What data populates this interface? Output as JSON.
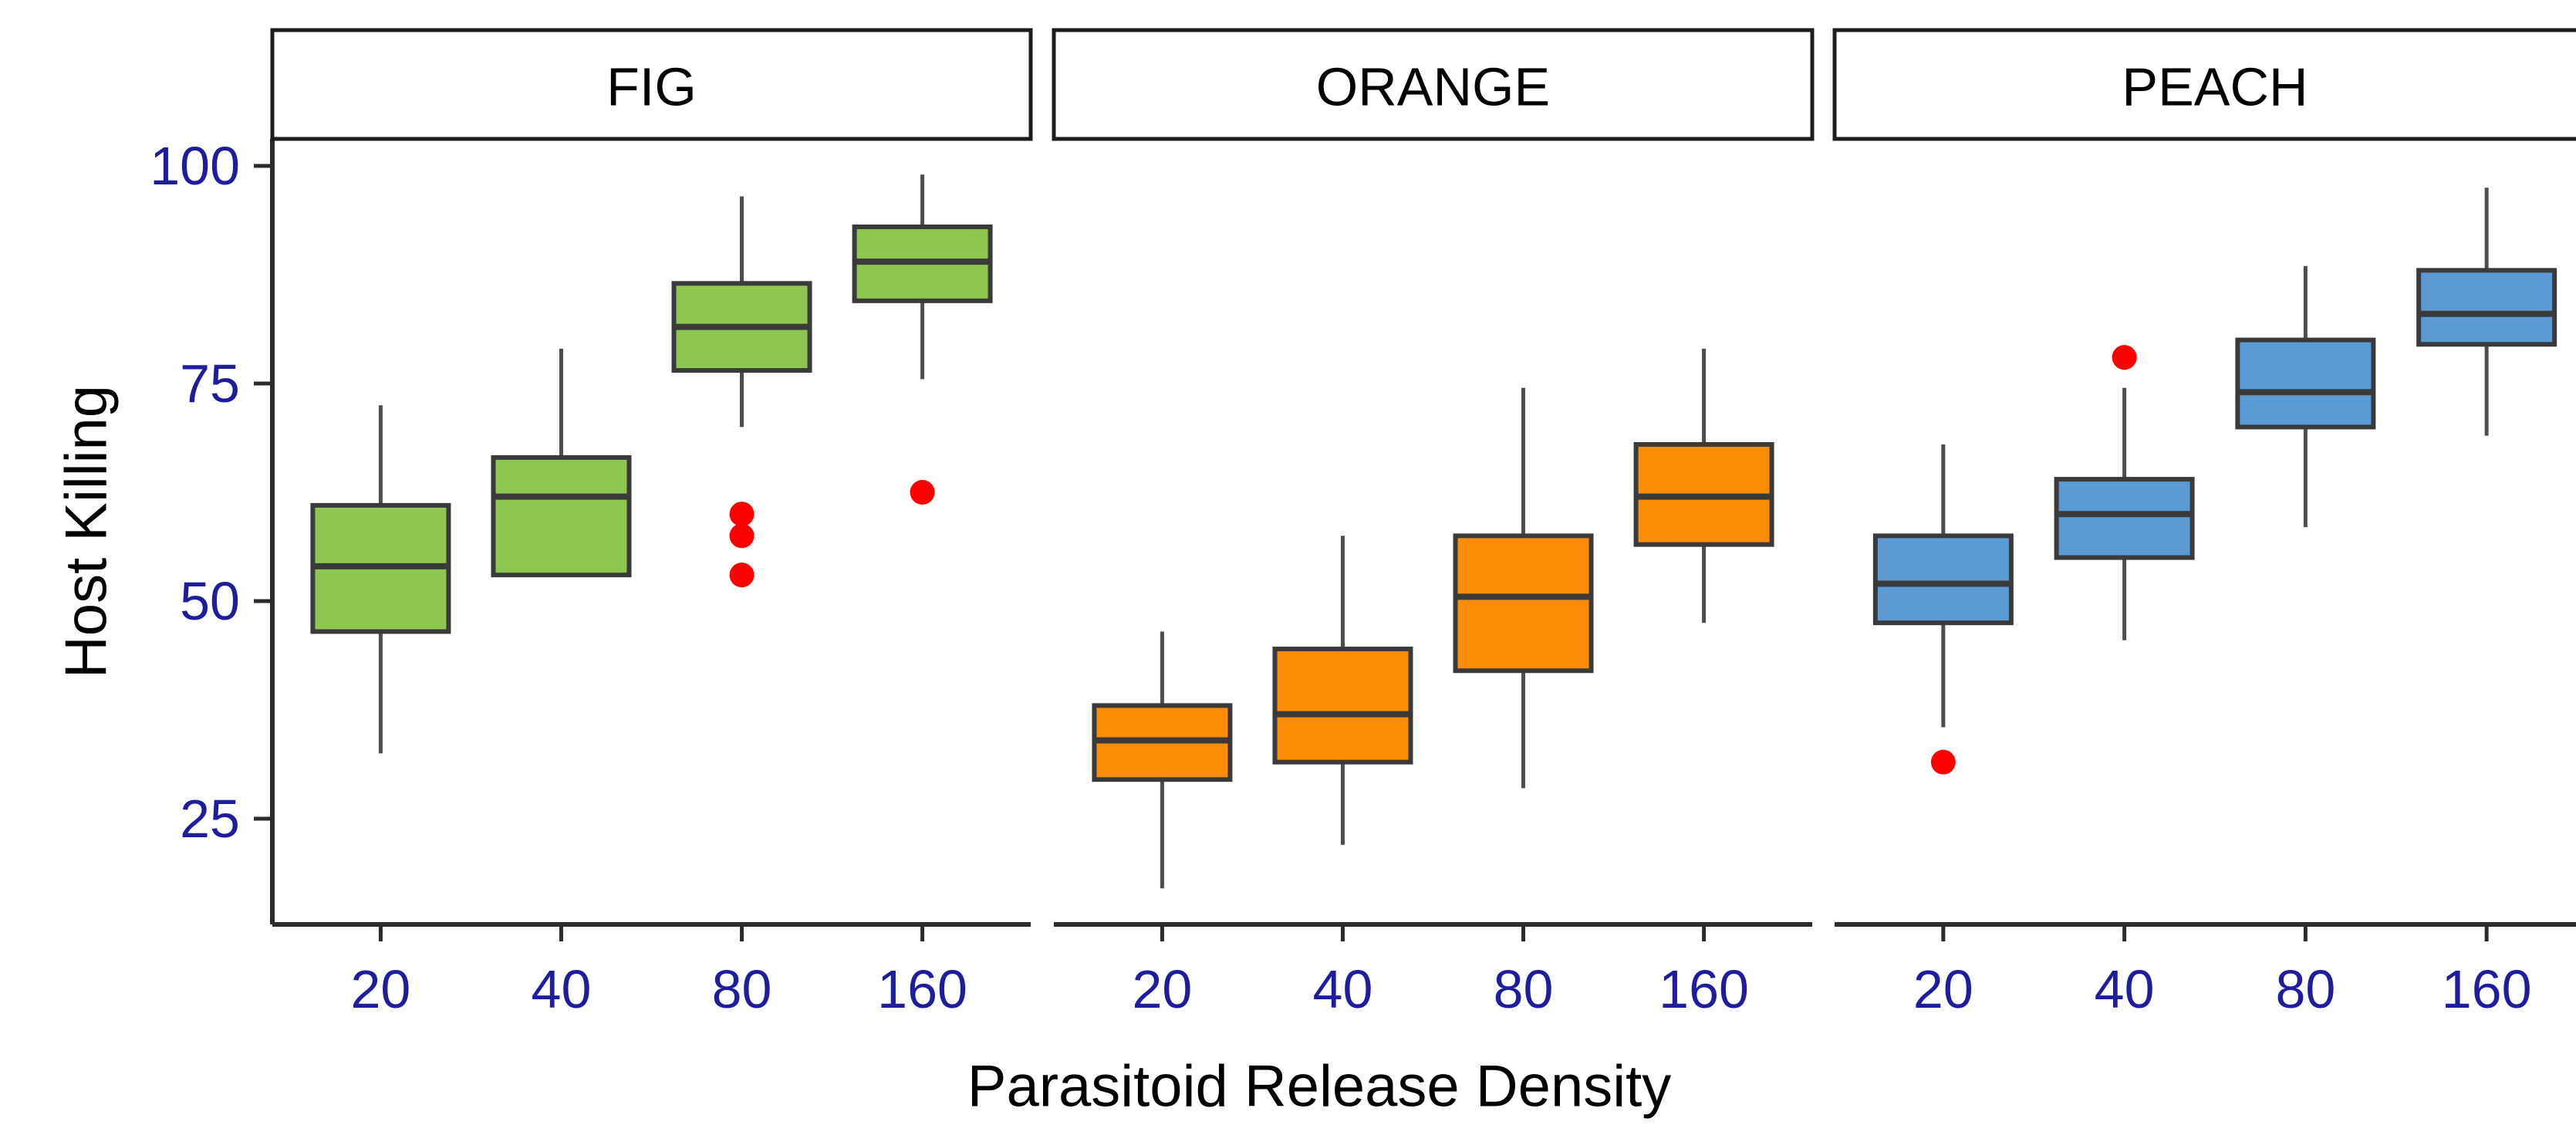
{
  "chart_data": {
    "type": "boxplot",
    "title": "",
    "xlabel": "Parasitoid Release Density",
    "ylabel": "Host Killing",
    "x_categories": [
      "20",
      "40",
      "80",
      "160"
    ],
    "y_ticks": [
      100,
      75,
      50,
      25
    ],
    "ylim": [
      13,
      103
    ],
    "grid": false,
    "legend": "none",
    "facets": [
      {
        "label": "FIG",
        "fill": "#8DC74F",
        "boxes": [
          {
            "x": "20",
            "whisker_low": 32.5,
            "q1": 46.5,
            "median": 54,
            "q3": 61,
            "whisker_high": 72.5,
            "outliers": []
          },
          {
            "x": "40",
            "whisker_low": 53,
            "q1": 53,
            "median": 62,
            "q3": 66.5,
            "whisker_high": 79,
            "outliers": []
          },
          {
            "x": "80",
            "whisker_low": 70,
            "q1": 76.5,
            "median": 81.5,
            "q3": 86.5,
            "whisker_high": 96.5,
            "outliers": [
              60,
              57.5,
              53
            ]
          },
          {
            "x": "160",
            "whisker_low": 75.5,
            "q1": 84.5,
            "median": 89,
            "q3": 93,
            "whisker_high": 99,
            "outliers": [
              62.5
            ]
          }
        ]
      },
      {
        "label": "ORANGE",
        "fill": "#FB8C05",
        "boxes": [
          {
            "x": "20",
            "whisker_low": 17,
            "q1": 29.5,
            "median": 34,
            "q3": 38,
            "whisker_high": 46.5,
            "outliers": []
          },
          {
            "x": "40",
            "whisker_low": 22,
            "q1": 31.5,
            "median": 37,
            "q3": 44.5,
            "whisker_high": 57.5,
            "outliers": []
          },
          {
            "x": "80",
            "whisker_low": 28.5,
            "q1": 42,
            "median": 50.5,
            "q3": 57.5,
            "whisker_high": 74.5,
            "outliers": []
          },
          {
            "x": "160",
            "whisker_low": 47.5,
            "q1": 56.5,
            "median": 62,
            "q3": 68,
            "whisker_high": 79,
            "outliers": []
          }
        ]
      },
      {
        "label": "PEACH",
        "fill": "#5B9BD5",
        "boxes": [
          {
            "x": "20",
            "whisker_low": 35.5,
            "q1": 47.5,
            "median": 52,
            "q3": 57.5,
            "whisker_high": 68,
            "outliers": [
              31.5
            ]
          },
          {
            "x": "40",
            "whisker_low": 45.5,
            "q1": 55,
            "median": 60,
            "q3": 64,
            "whisker_high": 74.5,
            "outliers": [
              78
            ]
          },
          {
            "x": "80",
            "whisker_low": 58.5,
            "q1": 70,
            "median": 74,
            "q3": 80,
            "whisker_high": 88.5,
            "outliers": []
          },
          {
            "x": "160",
            "whisker_low": 69,
            "q1": 79.5,
            "median": 83,
            "q3": 88,
            "whisker_high": 97.5,
            "outliers": []
          }
        ]
      }
    ],
    "style": {
      "background": "#FFFFFF",
      "strip_fill": "#FFFFFF",
      "strip_border": "#1C1C1C",
      "facet_label_color": "#000000",
      "tick_label_color": "#1E1D9E",
      "axis_title_color": "#000000",
      "axis_line_color": "#2B2B2B",
      "box_border_color": "#3A3A3A",
      "whisker_color": "#4D4D4D",
      "outlier_color": "#FF0000"
    }
  }
}
